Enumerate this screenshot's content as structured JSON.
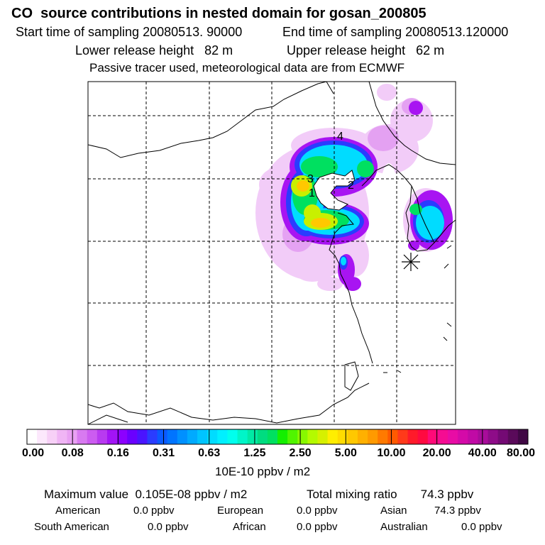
{
  "header": {
    "title": "CO  source contributions in nested domain for gosan_200805",
    "start_label": "Start time of sampling 20080513. 90000",
    "end_label": "End time of sampling 20080513.120000",
    "lower_label": "Lower release height   82 m",
    "upper_label": "Upper release height   62 m",
    "note": "Passive tracer used, meteorological data are from ECMWF"
  },
  "map": {
    "markers": [
      "1",
      "2",
      "3",
      "4"
    ],
    "receptor_symbol": "star-receptor-icon"
  },
  "legend": {
    "ticks": [
      "0.00",
      "0.08",
      "0.16",
      "0.31",
      "0.63",
      "1.25",
      "2.50",
      "5.00",
      "10.00",
      "20.00",
      "40.00",
      "80.00"
    ],
    "unit": "10E-10 ppbv / m2",
    "colors": [
      "#ffffff",
      "#fce8fc",
      "#f7d0f7",
      "#f0b5f5",
      "#e9a0f3",
      "#d87af0",
      "#cc5cf0",
      "#b83af0",
      "#a214f5",
      "#8c00ff",
      "#6a00ff",
      "#4a14ff",
      "#2a3cff",
      "#0a5aff",
      "#0074ff",
      "#0090ff",
      "#00aaff",
      "#00c4ff",
      "#00dcff",
      "#00f0ff",
      "#00ffee",
      "#00f5c8",
      "#00eaa5",
      "#00dc80",
      "#00e060",
      "#14ef00",
      "#50f500",
      "#88f800",
      "#b4fa00",
      "#d6f000",
      "#ffee00",
      "#ffdc00",
      "#ffc800",
      "#ffb000",
      "#ff9a00",
      "#ff7a00",
      "#ff5a00",
      "#ff3a1a",
      "#ff1a2a",
      "#ff0a40",
      "#ff0a78",
      "#f50c92",
      "#e80ca5",
      "#d40aa8",
      "#c00aa5",
      "#a80c9a",
      "#8e0c88",
      "#740a74",
      "#5a0a5a",
      "#400844"
    ]
  },
  "stats": {
    "max_label": "Maximum value  0.105E-08 ppbv / m2",
    "total_label": "Total mixing ratio       74.3 ppbv",
    "american_label": "American",
    "american_value": "0.0 ppbv",
    "european_label": "European",
    "european_value": "0.0 ppbv",
    "asian_label": "Asian",
    "asian_value": "74.3 ppbv",
    "south_american_label": "South American",
    "south_american_value": "0.0 ppbv",
    "african_label": "African",
    "african_value": "0.0 ppbv",
    "australian_label": "Australian",
    "australian_value": "0.0 ppbv"
  }
}
